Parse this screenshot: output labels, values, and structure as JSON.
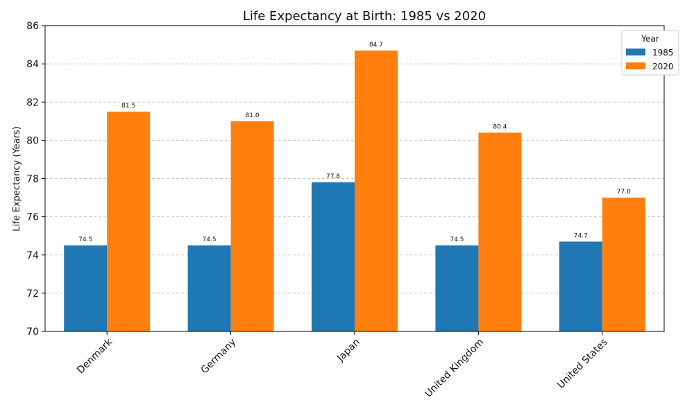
{
  "chart_data": {
    "type": "bar",
    "title": "Life Expectancy at Birth: 1985 vs 2020",
    "xlabel": "",
    "ylabel": "Life Expectancy (Years)",
    "categories": [
      "Denmark",
      "Germany",
      "Japan",
      "United Kingdom",
      "United States"
    ],
    "series": [
      {
        "name": "1985",
        "values": [
          74.5,
          74.5,
          77.8,
          74.5,
          74.7
        ],
        "labels": [
          "74.5",
          "74.5",
          "77.8",
          "74.5",
          "74.7"
        ],
        "color": "#1f77b4"
      },
      {
        "name": "2020",
        "values": [
          81.5,
          81.0,
          84.7,
          80.4,
          77.0
        ],
        "labels": [
          "81.5",
          "81.0",
          "84.7",
          "80.4",
          "77.0"
        ],
        "color": "#ff7f0e"
      }
    ],
    "ylim": [
      70,
      86
    ],
    "yticks": [
      "70",
      "72",
      "74",
      "76",
      "78",
      "80",
      "82",
      "84",
      "86"
    ],
    "grid": "y-dashed",
    "legend": {
      "title": "Year",
      "placement": "top-right"
    }
  }
}
